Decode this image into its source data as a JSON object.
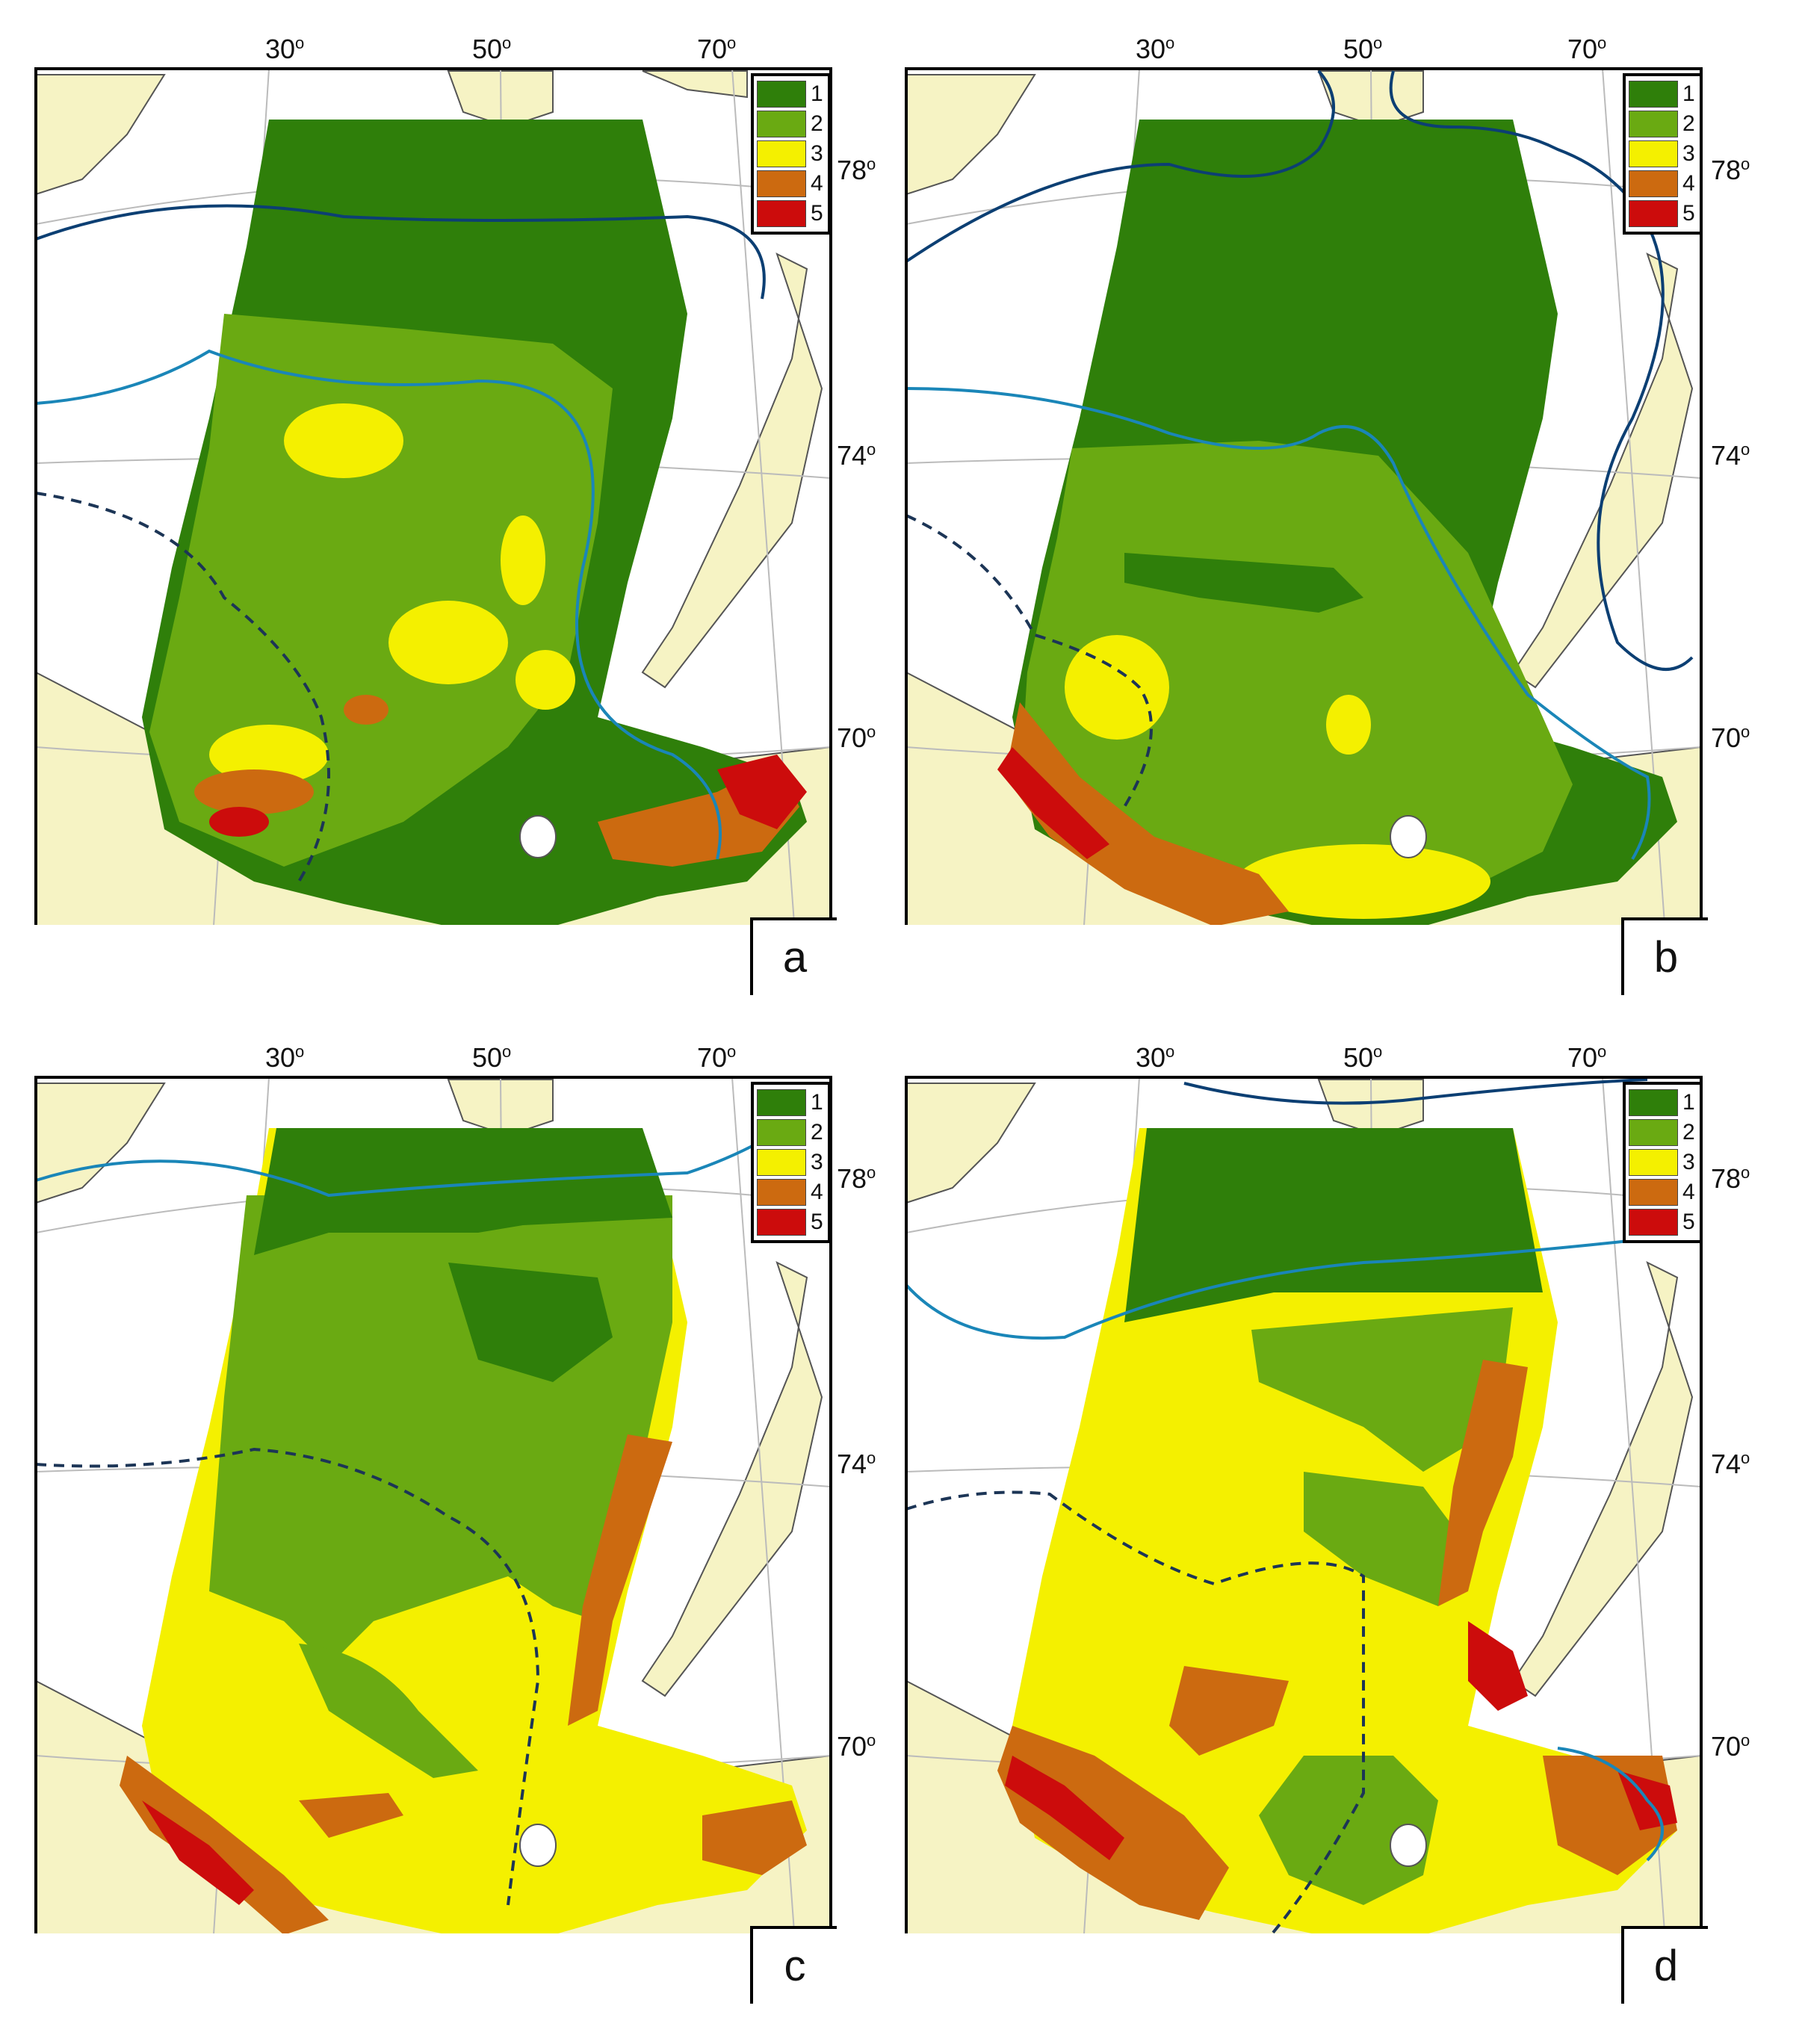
{
  "legend": {
    "items": [
      {
        "label": "1",
        "color": "#2f7f0a"
      },
      {
        "label": "2",
        "color": "#6aaa12"
      },
      {
        "label": "3",
        "color": "#f4f000"
      },
      {
        "label": "4",
        "color": "#cc6a10"
      },
      {
        "label": "5",
        "color": "#cc0c0c"
      }
    ]
  },
  "axes": {
    "longitudes": [
      "30",
      "50",
      "70"
    ],
    "latitudes": [
      "78",
      "74",
      "70"
    ],
    "degree_symbol": "o"
  },
  "colors": {
    "land": "#f6f3c4",
    "sea": "#ffffff",
    "front_dark": "#0c3f73",
    "front_light": "#1a86b8",
    "dashed": "#1c3556"
  },
  "panels": [
    {
      "letter": "a"
    },
    {
      "letter": "b"
    },
    {
      "letter": "c"
    },
    {
      "letter": "d"
    }
  ]
}
